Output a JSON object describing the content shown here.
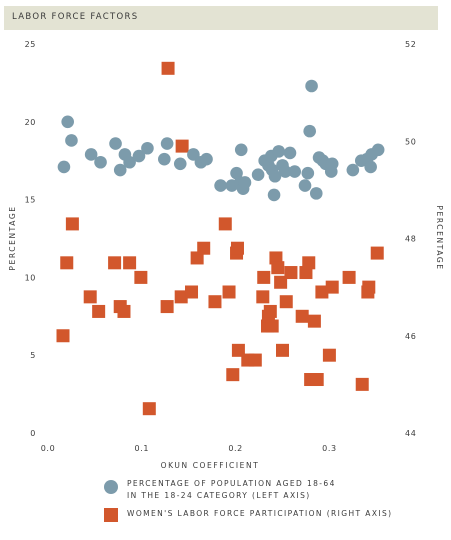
{
  "header": {
    "title": "LABOR FORCE FACTORS"
  },
  "colors": {
    "series_left": "#7c9bab",
    "series_right": "#d2572c",
    "header_bg": "#e3e3d3"
  },
  "chart_data": {
    "type": "scatter",
    "title": "LABOR FORCE FACTORS",
    "xlabel": "OKUN COEFFICIENT",
    "ylabel_left": "PERCENTAGE",
    "ylabel_right": "PERCENTAGE",
    "xlim": [
      0,
      0.37
    ],
    "ylim_left": [
      0,
      25
    ],
    "ylim_right": [
      44,
      52
    ],
    "x_ticks": [
      "0.0",
      "0.1",
      "0.2",
      "0.3"
    ],
    "x_tick_values": [
      0.0,
      0.1,
      0.2,
      0.3
    ],
    "y_left_ticks": [
      "0",
      "5",
      "10",
      "15",
      "20",
      "25"
    ],
    "y_left_tick_values": [
      0,
      5,
      10,
      15,
      20,
      25
    ],
    "y_right_ticks": [
      "44",
      "46",
      "48",
      "50",
      "52"
    ],
    "y_right_tick_values": [
      44,
      46,
      48,
      50,
      52
    ],
    "grid": false,
    "legend_position": "bottom",
    "series": [
      {
        "name": "PERCENTAGE OF POPULATION AGED 18-64 IN THE 18-24 CATEGORY (LEFT AXIS)",
        "axis": "left",
        "marker": "circle",
        "points": [
          [
            0.017,
            17.1
          ],
          [
            0.021,
            20.0
          ],
          [
            0.025,
            18.8
          ],
          [
            0.046,
            17.9
          ],
          [
            0.056,
            17.4
          ],
          [
            0.072,
            18.6
          ],
          [
            0.077,
            16.9
          ],
          [
            0.082,
            17.9
          ],
          [
            0.087,
            17.4
          ],
          [
            0.097,
            17.8
          ],
          [
            0.106,
            18.3
          ],
          [
            0.124,
            17.6
          ],
          [
            0.127,
            18.6
          ],
          [
            0.141,
            17.3
          ],
          [
            0.155,
            17.9
          ],
          [
            0.163,
            17.4
          ],
          [
            0.169,
            17.6
          ],
          [
            0.184,
            15.9
          ],
          [
            0.196,
            15.9
          ],
          [
            0.201,
            16.7
          ],
          [
            0.205,
            16.1
          ],
          [
            0.206,
            18.2
          ],
          [
            0.208,
            15.7
          ],
          [
            0.21,
            16.1
          ],
          [
            0.224,
            16.6
          ],
          [
            0.231,
            17.5
          ],
          [
            0.235,
            17.2
          ],
          [
            0.238,
            17.8
          ],
          [
            0.239,
            16.9
          ],
          [
            0.241,
            15.3
          ],
          [
            0.242,
            16.5
          ],
          [
            0.246,
            18.1
          ],
          [
            0.25,
            17.2
          ],
          [
            0.253,
            16.8
          ],
          [
            0.258,
            18.0
          ],
          [
            0.263,
            16.8
          ],
          [
            0.274,
            15.9
          ],
          [
            0.277,
            16.7
          ],
          [
            0.279,
            19.4
          ],
          [
            0.281,
            22.3
          ],
          [
            0.286,
            15.4
          ],
          [
            0.289,
            17.7
          ],
          [
            0.293,
            17.5
          ],
          [
            0.296,
            17.3
          ],
          [
            0.302,
            16.8
          ],
          [
            0.303,
            17.3
          ],
          [
            0.325,
            16.9
          ],
          [
            0.334,
            17.5
          ],
          [
            0.34,
            17.6
          ],
          [
            0.344,
            17.1
          ],
          [
            0.345,
            17.9
          ],
          [
            0.352,
            18.2
          ]
        ]
      },
      {
        "name": "WOMEN'S LABOR FORCE PARTICIPATION (RIGHT AXIS)",
        "axis": "right",
        "marker": "square",
        "points": [
          [
            0.016,
            46.0
          ],
          [
            0.02,
            47.5
          ],
          [
            0.026,
            48.3
          ],
          [
            0.045,
            46.8
          ],
          [
            0.054,
            46.5
          ],
          [
            0.071,
            47.5
          ],
          [
            0.077,
            46.6
          ],
          [
            0.081,
            46.5
          ],
          [
            0.087,
            47.5
          ],
          [
            0.099,
            47.2
          ],
          [
            0.108,
            44.5
          ],
          [
            0.127,
            46.6
          ],
          [
            0.128,
            51.5
          ],
          [
            0.142,
            46.8
          ],
          [
            0.143,
            49.9
          ],
          [
            0.153,
            46.9
          ],
          [
            0.159,
            47.6
          ],
          [
            0.166,
            47.8
          ],
          [
            0.178,
            46.7
          ],
          [
            0.189,
            48.3
          ],
          [
            0.193,
            46.9
          ],
          [
            0.197,
            45.2
          ],
          [
            0.201,
            47.7
          ],
          [
            0.202,
            47.8
          ],
          [
            0.203,
            45.7
          ],
          [
            0.213,
            45.5
          ],
          [
            0.221,
            45.5
          ],
          [
            0.229,
            46.8
          ],
          [
            0.23,
            47.2
          ],
          [
            0.234,
            46.2
          ],
          [
            0.235,
            46.4
          ],
          [
            0.237,
            46.5
          ],
          [
            0.239,
            46.2
          ],
          [
            0.243,
            47.6
          ],
          [
            0.245,
            47.4
          ],
          [
            0.248,
            47.1
          ],
          [
            0.25,
            45.7
          ],
          [
            0.254,
            46.7
          ],
          [
            0.259,
            47.3
          ],
          [
            0.271,
            46.4
          ],
          [
            0.275,
            47.3
          ],
          [
            0.278,
            47.5
          ],
          [
            0.28,
            45.1
          ],
          [
            0.284,
            46.3
          ],
          [
            0.287,
            45.1
          ],
          [
            0.292,
            46.9
          ],
          [
            0.3,
            45.6
          ],
          [
            0.303,
            47.0
          ],
          [
            0.321,
            47.2
          ],
          [
            0.335,
            45.0
          ],
          [
            0.341,
            46.9
          ],
          [
            0.342,
            47.0
          ],
          [
            0.351,
            47.7
          ]
        ]
      }
    ]
  }
}
